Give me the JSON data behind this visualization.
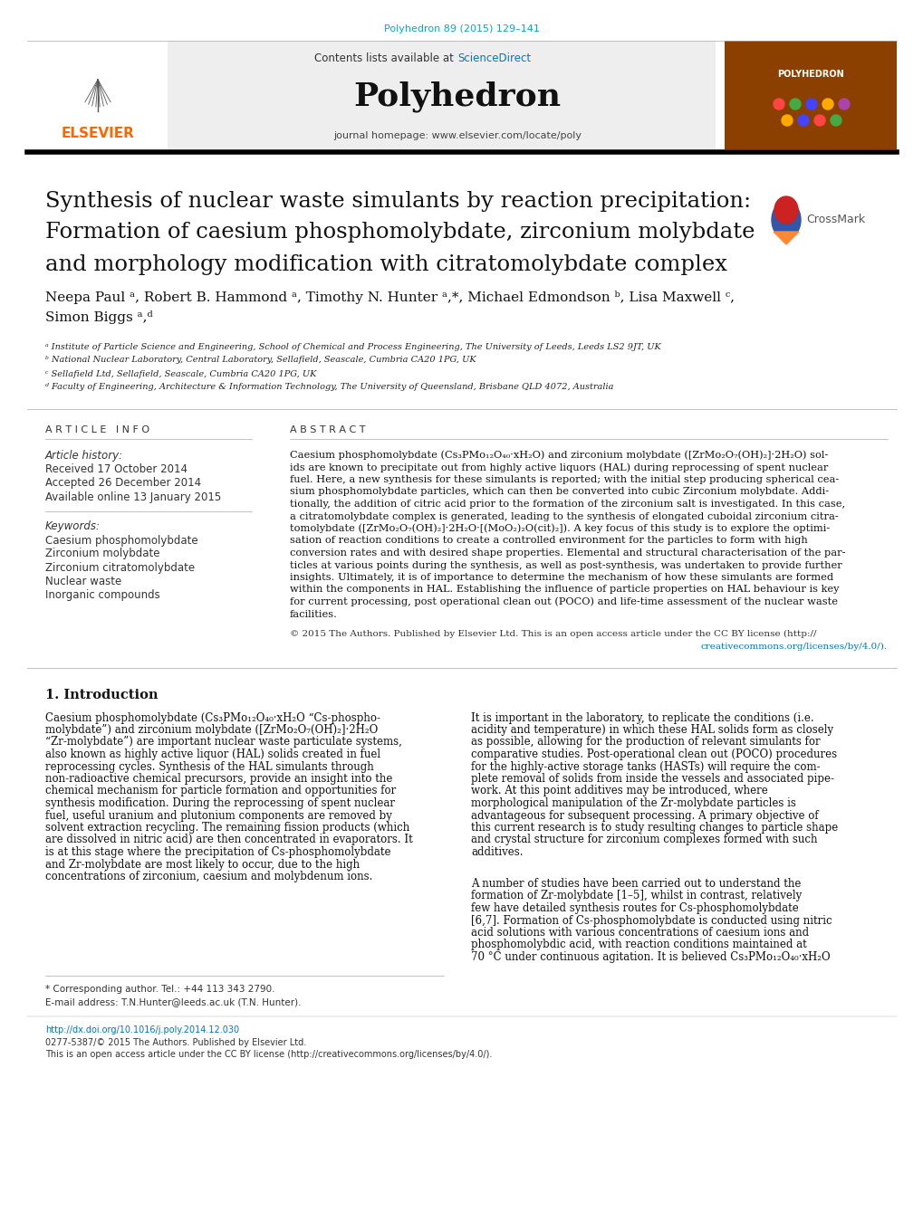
{
  "page_bg": "#ffffff",
  "header_doi": "Polyhedron 89 (2015) 129–141",
  "header_doi_color": "#00AACC",
  "journal_header_bg": "#eeeeee",
  "journal_name": "Polyhedron",
  "contents_text": "Contents lists available at ",
  "sciencedirect_text": "ScienceDirect",
  "sciencedirect_color": "#0077BB",
  "journal_homepage": "journal homepage: www.elsevier.com/locate/poly",
  "elsevier_color": "#FF6600",
  "title_line1": "Synthesis of nuclear waste simulants by reaction precipitation:",
  "title_line2": "Formation of caesium phosphomolybdate, zirconium molybdate",
  "title_line3": "and morphology modification with citratomolybdate complex",
  "authors": "Neepa Paul ᵃ, Robert B. Hammond ᵃ, Timothy N. Hunter ᵃ,*, Michael Edmondson ᵇ, Lisa Maxwell ᶜ,",
  "authors2": "Simon Biggs ᵃ,ᵈ",
  "affil_a": "ᵃ Institute of Particle Science and Engineering, School of Chemical and Process Engineering, The University of Leeds, Leeds LS2 9JT, UK",
  "affil_b": "ᵇ National Nuclear Laboratory, Central Laboratory, Sellafield, Seascale, Cumbria CA20 1PG, UK",
  "affil_c": "ᶜ Sellafield Ltd, Sellafield, Seascale, Cumbria CA20 1PG, UK",
  "affil_d": "ᵈ Faculty of Engineering, Architecture & Information Technology, The University of Queensland, Brisbane QLD 4072, Australia",
  "article_info_header": "A R T I C L E   I N F O",
  "abstract_header": "A B S T R A C T",
  "article_history_label": "Article history:",
  "received": "Received 17 October 2014",
  "accepted": "Accepted 26 December 2014",
  "available": "Available online 13 January 2015",
  "keywords_label": "Keywords:",
  "kw1": "Caesium phosphomolybdate",
  "kw2": "Zirconium molybdate",
  "kw3": "Zirconium citratomolybdate",
  "kw4": "Nuclear waste",
  "kw5": "Inorganic compounds",
  "section1_title": "1. Introduction",
  "footer_star": "* Corresponding author. Tel.: +44 113 343 2790.",
  "footer_email": "E-mail address: T.N.Hunter@leeds.ac.uk (T.N. Hunter).",
  "footer_doi": "http://dx.doi.org/10.1016/j.poly.2014.12.030",
  "footer_issn": "0277-5387/© 2015 The Authors. Published by Elsevier Ltd.",
  "footer_open": "This is an open access article under the CC BY license (http://creativecommons.org/licenses/by/4.0/).",
  "crossmark_color": "#4488CC",
  "abstract_lines": [
    "Caesium phosphomolybdate (Cs₃PMo₁₂O₄₀·xH₂O) and zirconium molybdate ([ZrMo₂O₇(OH)₂]·2H₂O) sol-",
    "ids are known to precipitate out from highly active liquors (HAL) during reprocessing of spent nuclear",
    "fuel. Here, a new synthesis for these simulants is reported; with the initial step producing spherical cea-",
    "sium phosphomolybdate particles, which can then be converted into cubic Zirconium molybdate. Addi-",
    "tionally, the addition of citric acid prior to the formation of the zirconium salt is investigated. In this case,",
    "a citratomolybdate complex is generated, leading to the synthesis of elongated cuboidal zirconium citra-",
    "tomolybdate ([ZrMo₂O₇(OH)₂]·2H₂O·[(MoO₂)₂O(cit)₂]). A key focus of this study is to explore the optimi-",
    "sation of reaction conditions to create a controlled environment for the particles to form with high",
    "conversion rates and with desired shape properties. Elemental and structural characterisation of the par-",
    "ticles at various points during the synthesis, as well as post-synthesis, was undertaken to provide further",
    "insights. Ultimately, it is of importance to determine the mechanism of how these simulants are formed",
    "within the components in HAL. Establishing the influence of particle properties on HAL behaviour is key",
    "for current processing, post operational clean out (POCO) and life-time assessment of the nuclear waste",
    "facilities."
  ],
  "intro1_lines": [
    "Caesium phosphomolybdate (Cs₃PMo₁₂O₄₀·xH₂O “Cs-phospho-",
    "molybdate”) and zirconium molybdate ([ZrMo₂O₇(OH)₂]·2H₂O",
    "“Zr-molybdate”) are important nuclear waste particulate systems,",
    "also known as highly active liquor (HAL) solids created in fuel",
    "reprocessing cycles. Synthesis of the HAL simulants through",
    "non-radioactive chemical precursors, provide an insight into the",
    "chemical mechanism for particle formation and opportunities for",
    "synthesis modification. During the reprocessing of spent nuclear",
    "fuel, useful uranium and plutonium components are removed by",
    "solvent extraction recycling. The remaining fission products (which",
    "are dissolved in nitric acid) are then concentrated in evaporators. It",
    "is at this stage where the precipitation of Cs-phosphomolybdate",
    "and Zr-molybdate are most likely to occur, due to the high",
    "concentrations of zirconium, caesium and molybdenum ions."
  ],
  "intro2_lines": [
    "It is important in the laboratory, to replicate the conditions (i.e.",
    "acidity and temperature) in which these HAL solids form as closely",
    "as possible, allowing for the production of relevant simulants for",
    "comparative studies. Post-operational clean out (POCO) procedures",
    "for the highly-active storage tanks (HASTs) will require the com-",
    "plete removal of solids from inside the vessels and associated pipe-",
    "work. At this point additives may be introduced, where",
    "morphological manipulation of the Zr-molybdate particles is",
    "advantageous for subsequent processing. A primary objective of",
    "this current research is to study resulting changes to particle shape",
    "and crystal structure for zirconium complexes formed with such",
    "additives.",
    "",
    "A number of studies have been carried out to understand the",
    "formation of Zr-molybdate [1–5], whilst in contrast, relatively",
    "few have detailed synthesis routes for Cs-phosphomolybdate",
    "[6,7]. Formation of Cs-phosphomolybdate is conducted using nitric",
    "acid solutions with various concentrations of caesium ions and",
    "phosphomolybdic acid, with reaction conditions maintained at",
    "70 °C under continuous agitation. It is believed Cs₃PMo₁₂O₄₀·xH₂O"
  ]
}
